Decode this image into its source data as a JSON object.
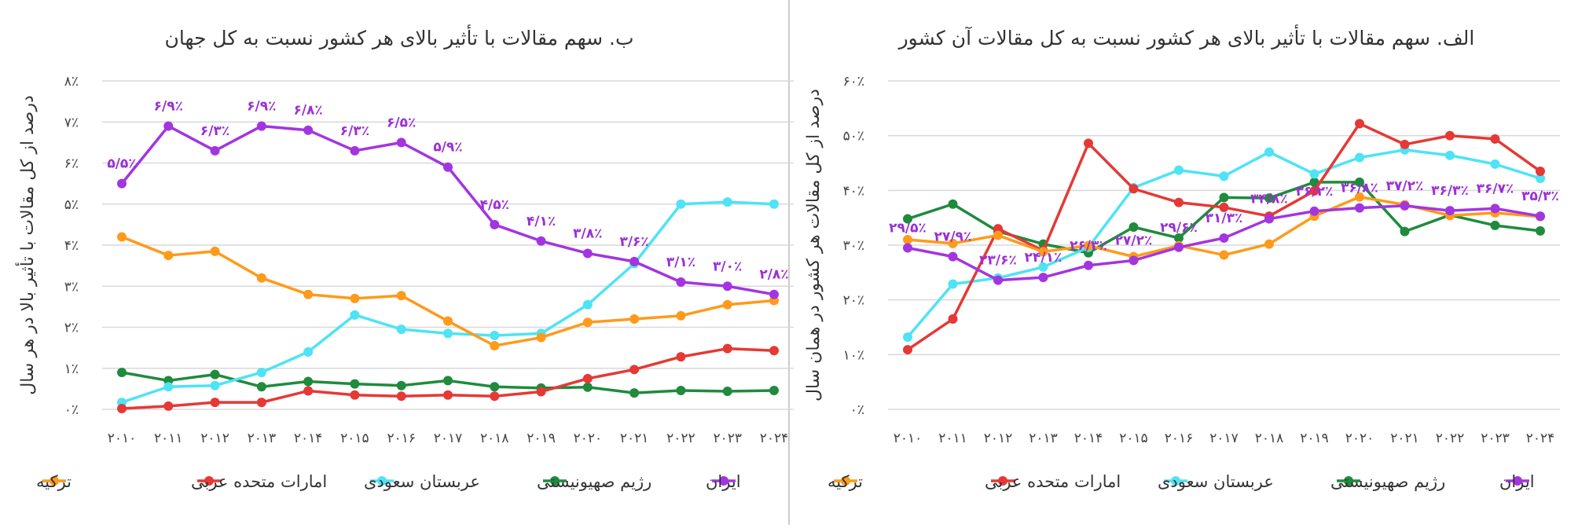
{
  "chart_data": [
    {
      "type": "line",
      "title": "ب. سهم مقالات با تأثیر بالای هر کشور نسبت به کل جهان",
      "xlabel": "",
      "ylabel": "درصد از کل مقالات با تأثیر بالا در هر سال",
      "x": [
        "۲۰۱۰",
        "۲۰۱۱",
        "۲۰۱۲",
        "۲۰۱۳",
        "۲۰۱۴",
        "۲۰۱۵",
        "۲۰۱۶",
        "۲۰۱۷",
        "۲۰۱۸",
        "۲۰۱۹",
        "۲۰۲۰",
        "۲۰۲۱",
        "۲۰۲۲",
        "۲۰۲۳",
        "۲۰۲۴"
      ],
      "ylim": [
        0,
        8
      ],
      "yticks": [
        "۰٪",
        "۱٪",
        "۲٪",
        "۳٪",
        "۴٪",
        "۵٪",
        "۶٪",
        "۷٪",
        "۸٪"
      ],
      "grid": true,
      "legend": "bottom",
      "series": [
        {
          "name": "ایران",
          "color": "#a335e0",
          "values": [
            5.5,
            6.9,
            6.3,
            6.9,
            6.8,
            6.3,
            6.5,
            5.9,
            4.5,
            4.1,
            3.8,
            3.6,
            3.1,
            3.0,
            2.8
          ],
          "labels": [
            "۵/۵٪",
            "۶/۹٪",
            "۶/۳٪",
            "۶/۹٪",
            "۶/۸٪",
            "۶/۳٪",
            "۶/۵٪",
            "۵/۹٪",
            "۴/۵٪",
            "۴/۱٪",
            "۳/۸٪",
            "۳/۶٪",
            "۳/۱٪",
            "۳/۰٪",
            "۲/۸٪"
          ]
        },
        {
          "name": "رژیم صهیونیستی",
          "color": "#1e8b3d",
          "values": [
            0.9,
            0.7,
            0.85,
            0.55,
            0.68,
            0.62,
            0.58,
            0.7,
            0.55,
            0.52,
            0.54,
            0.4,
            0.46,
            0.44,
            0.46
          ]
        },
        {
          "name": "عربستان سعودی",
          "color": "#4ee3f5",
          "values": [
            0.17,
            0.55,
            0.58,
            0.9,
            1.4,
            2.3,
            1.95,
            1.85,
            1.8,
            1.85,
            2.55,
            3.55,
            5.0,
            5.05,
            5.0
          ]
        },
        {
          "name": "امارات متحده عربی",
          "color": "#e53935",
          "values": [
            0.02,
            0.08,
            0.17,
            0.17,
            0.45,
            0.35,
            0.32,
            0.35,
            0.32,
            0.43,
            0.75,
            0.97,
            1.28,
            1.48,
            1.43
          ]
        },
        {
          "name": "ترکیه",
          "color": "#ff9a1a",
          "values": [
            4.2,
            3.75,
            3.85,
            3.2,
            2.8,
            2.7,
            2.77,
            2.15,
            1.55,
            1.75,
            2.12,
            2.2,
            2.28,
            2.55,
            2.65
          ]
        }
      ]
    },
    {
      "type": "line",
      "title": "الف. سهم مقالات با تأثیر بالای هر کشور نسبت به کل مقالات آن کشور",
      "xlabel": "",
      "ylabel": "درصد از کل مقالات هر کشور در همان سال",
      "x": [
        "۲۰۱۰",
        "۲۰۱۱",
        "۲۰۱۲",
        "۲۰۱۳",
        "۲۰۱۴",
        "۲۰۱۵",
        "۲۰۱۶",
        "۲۰۱۷",
        "۲۰۱۸",
        "۲۰۱۹",
        "۲۰۲۰",
        "۲۰۲۱",
        "۲۰۲۲",
        "۲۰۲۳",
        "۲۰۲۴"
      ],
      "ylim": [
        0,
        60
      ],
      "yticks": [
        "۰٪",
        "۱۰٪",
        "۲۰٪",
        "۳۰٪",
        "۴۰٪",
        "۵۰٪",
        "۶۰٪"
      ],
      "grid": true,
      "legend": "bottom",
      "series": [
        {
          "name": "ایران",
          "color": "#a335e0",
          "values": [
            29.5,
            27.9,
            23.6,
            24.1,
            26.3,
            27.2,
            29.6,
            31.3,
            34.8,
            36.2,
            36.8,
            37.2,
            36.3,
            36.7,
            35.3
          ],
          "labels": [
            "۲۹/۵٪",
            "۲۷/۹٪",
            "۲۳/۶٪",
            "۲۴/۱٪",
            "۲۶/۳٪",
            "۲۷/۲٪",
            "۲۹/۶٪",
            "۳۱/۳٪",
            "۳۴/۸٪",
            "۳۶/۲٪",
            "۳۶/۸٪",
            "۳۷/۲٪",
            "۳۶/۳٪",
            "۳۶/۷٪",
            "۳۵/۳٪"
          ]
        },
        {
          "name": "رژیم صهیونیستی",
          "color": "#1e8b3d",
          "values": [
            34.8,
            37.5,
            32.5,
            30.2,
            28.6,
            33.3,
            31.3,
            38.7,
            38.6,
            41.5,
            41.5,
            32.5,
            35.5,
            33.6,
            32.6
          ]
        },
        {
          "name": "عربستان سعودی",
          "color": "#4ee3f5",
          "values": [
            13.2,
            22.9,
            24.0,
            26.0,
            29.6,
            40.5,
            43.7,
            42.6,
            47.0,
            43.0,
            46.0,
            47.4,
            46.4,
            44.8,
            42.2
          ]
        },
        {
          "name": "امارات متحده عربی",
          "color": "#e53935",
          "values": [
            10.9,
            16.5,
            33.0,
            29.0,
            48.6,
            40.3,
            37.8,
            36.9,
            35.3,
            39.9,
            52.2,
            48.4,
            50.0,
            49.4,
            43.5
          ]
        },
        {
          "name": "ترکیه",
          "color": "#ff9a1a",
          "values": [
            31.0,
            30.3,
            31.8,
            28.8,
            29.9,
            27.9,
            29.9,
            28.2,
            30.2,
            35.3,
            38.8,
            37.4,
            35.4,
            35.9,
            35.2
          ]
        }
      ]
    }
  ]
}
